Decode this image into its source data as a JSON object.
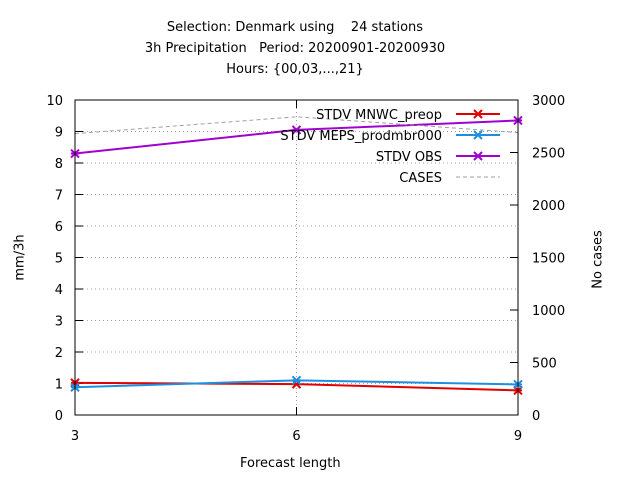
{
  "chart_data": {
    "type": "line",
    "title_lines": [
      "Selection: Denmark using    24 stations",
      "3h Precipitation   Period: 20200901-20200930",
      "Hours: {00,03,...,21}"
    ],
    "xlabel": "Forecast length",
    "ylabel": "mm/3h",
    "y2label": "No cases",
    "x": [
      3,
      6,
      9
    ],
    "xlim": [
      3,
      9
    ],
    "ylim": [
      0,
      10
    ],
    "y2lim": [
      0,
      3000
    ],
    "xticks": [
      "3",
      "6",
      "9"
    ],
    "yticks": [
      "0",
      "1",
      "2",
      "3",
      "4",
      "5",
      "6",
      "7",
      "8",
      "9",
      "10"
    ],
    "y2ticks": [
      "0",
      "500",
      "1000",
      "1500",
      "2000",
      "2500",
      "3000"
    ],
    "grid": true,
    "legend_position": "top-right",
    "series": [
      {
        "name": "STDV MNWC_preop",
        "axis": "y1",
        "values": [
          1.02,
          0.98,
          0.78
        ],
        "color": "#e00000",
        "style": "solid",
        "marker": "x"
      },
      {
        "name": "STDV MEPS_prodmbr000",
        "axis": "y1",
        "values": [
          0.88,
          1.1,
          0.97
        ],
        "color": "#1e8fe0",
        "style": "solid",
        "marker": "x"
      },
      {
        "name": "STDV OBS",
        "axis": "y1",
        "values": [
          8.3,
          9.05,
          9.35
        ],
        "color": "#a000d0",
        "style": "solid",
        "marker": "x"
      },
      {
        "name": "CASES",
        "axis": "y2",
        "values": [
          2680,
          2840,
          2690
        ],
        "color": "#a0a0a0",
        "style": "dashed",
        "marker": "none"
      }
    ]
  }
}
